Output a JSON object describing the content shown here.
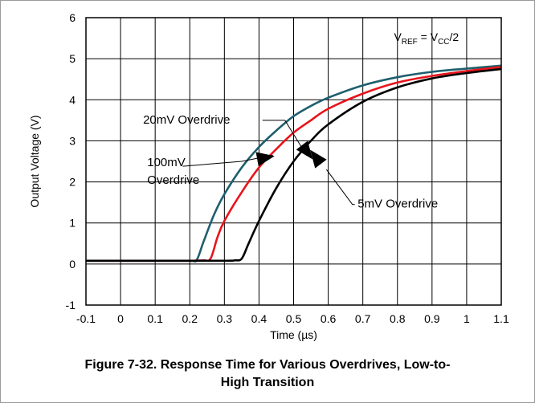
{
  "chart_data": {
    "type": "line",
    "xlabel": "Time (µs)",
    "ylabel": "Output Voltage (V)",
    "xlim": [
      -0.1,
      1.1
    ],
    "ylim": [
      -1,
      6
    ],
    "x_ticks": [
      "-0.1",
      "0",
      "0.1",
      "0.2",
      "0.3",
      "0.4",
      "0.5",
      "0.6",
      "0.7",
      "0.8",
      "0.9",
      "1",
      "1.1"
    ],
    "y_ticks": [
      "-1",
      "0",
      "1",
      "2",
      "3",
      "4",
      "5",
      "6"
    ],
    "grid": true,
    "annotation": {
      "base": "V",
      "sub1": "REF",
      "mid": " = V",
      "sub2": "CC",
      "tail": "/2"
    },
    "series": [
      {
        "name": "20mV Overdrive",
        "color": "#1f5f6e",
        "x": [
          -0.1,
          0.1,
          0.2,
          0.22,
          0.24,
          0.27,
          0.3,
          0.35,
          0.4,
          0.45,
          0.5,
          0.55,
          0.6,
          0.7,
          0.8,
          0.9,
          1.0,
          1.1
        ],
        "y": [
          0.08,
          0.08,
          0.08,
          0.1,
          0.55,
          1.2,
          1.7,
          2.35,
          2.85,
          3.25,
          3.6,
          3.85,
          4.05,
          4.35,
          4.55,
          4.68,
          4.76,
          4.83
        ]
      },
      {
        "name": "100mV Overdrive",
        "color": "#e8141b",
        "x": [
          -0.1,
          0.1,
          0.2,
          0.24,
          0.26,
          0.28,
          0.3,
          0.35,
          0.4,
          0.45,
          0.5,
          0.55,
          0.6,
          0.7,
          0.8,
          0.9,
          1.0,
          1.1
        ],
        "y": [
          0.08,
          0.08,
          0.08,
          0.09,
          0.13,
          0.65,
          1.05,
          1.75,
          2.35,
          2.8,
          3.2,
          3.5,
          3.78,
          4.15,
          4.42,
          4.58,
          4.7,
          4.8
        ]
      },
      {
        "name": "5mV Overdrive",
        "color": "#000000",
        "x": [
          -0.1,
          0.1,
          0.3,
          0.33,
          0.35,
          0.37,
          0.4,
          0.45,
          0.5,
          0.55,
          0.6,
          0.7,
          0.8,
          0.9,
          1.0,
          1.1
        ],
        "y": [
          0.08,
          0.08,
          0.08,
          0.09,
          0.13,
          0.5,
          1.05,
          1.85,
          2.5,
          3.0,
          3.4,
          3.95,
          4.3,
          4.52,
          4.65,
          4.75
        ]
      }
    ],
    "labels": [
      {
        "lines": [
          "20mV Overdrive"
        ]
      },
      {
        "lines": [
          "100mV",
          "Overdrive"
        ]
      },
      {
        "lines": [
          "5mV Overdrive"
        ]
      }
    ]
  },
  "caption": {
    "line1": "Figure 7-32. Response Time for Various Overdrives, Low-to-",
    "line2": "High Transition"
  }
}
